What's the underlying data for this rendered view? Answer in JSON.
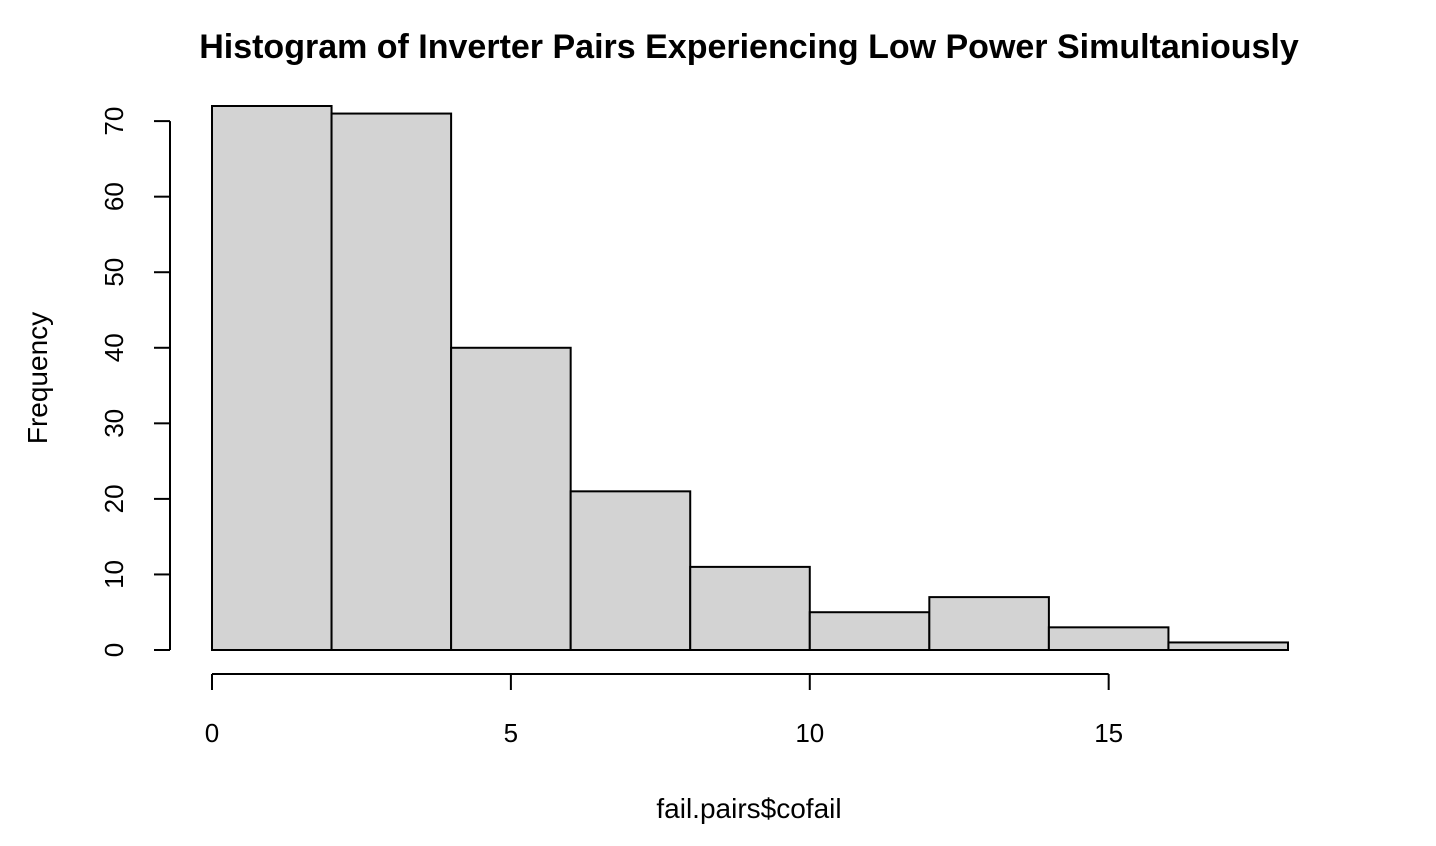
{
  "chart_data": {
    "type": "bar",
    "subtype": "histogram",
    "title": "Histogram of Inverter Pairs Experiencing Low Power Simultaniously",
    "xlabel": "fail.pairs$cofail",
    "ylabel": "Frequency",
    "bins": [
      {
        "start": 0,
        "end": 2,
        "count": 72
      },
      {
        "start": 2,
        "end": 4,
        "count": 71
      },
      {
        "start": 4,
        "end": 6,
        "count": 40
      },
      {
        "start": 6,
        "end": 8,
        "count": 21
      },
      {
        "start": 8,
        "end": 10,
        "count": 11
      },
      {
        "start": 10,
        "end": 12,
        "count": 5
      },
      {
        "start": 12,
        "end": 14,
        "count": 7
      },
      {
        "start": 14,
        "end": 16,
        "count": 3
      },
      {
        "start": 16,
        "end": 18,
        "count": 1
      }
    ],
    "x_ticks": [
      "0",
      "5",
      "10",
      "15"
    ],
    "y_ticks": [
      "0",
      "10",
      "20",
      "30",
      "40",
      "50",
      "60",
      "70"
    ],
    "xlim": [
      0,
      18
    ],
    "ylim": [
      0,
      72
    ],
    "grid": false,
    "legend": "none",
    "colors": {
      "bar_fill": "#d3d3d3",
      "bar_stroke": "#000000"
    }
  }
}
